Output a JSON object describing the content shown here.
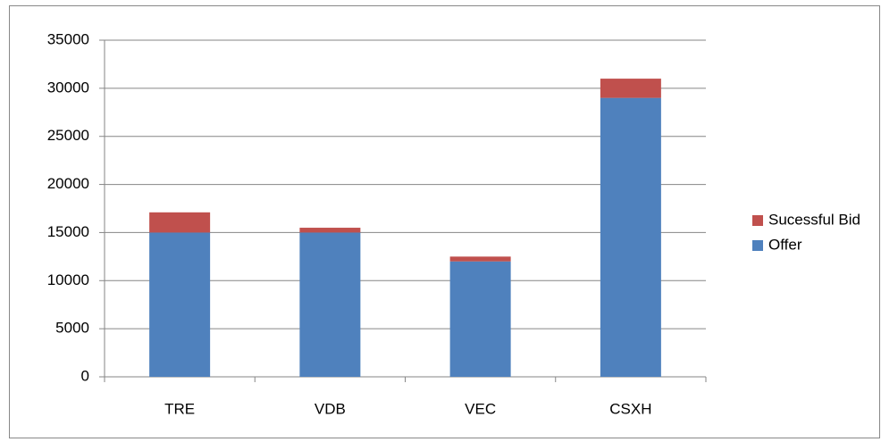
{
  "chart_data": {
    "type": "stacked_bar",
    "categories": [
      "TRE",
      "VDB",
      "VEC",
      "CSXH"
    ],
    "series": [
      {
        "name": "Offer",
        "color": "#4f81bd",
        "values": [
          15000,
          15000,
          12000,
          29000
        ]
      },
      {
        "name": "Sucessful Bid",
        "color": "#c0504d",
        "values": [
          2100,
          500,
          500,
          2000
        ]
      }
    ],
    "ylim": [
      0,
      35000
    ],
    "yticks": [
      0,
      5000,
      10000,
      15000,
      20000,
      25000,
      30000,
      35000
    ],
    "grid": true,
    "legend": "right"
  }
}
